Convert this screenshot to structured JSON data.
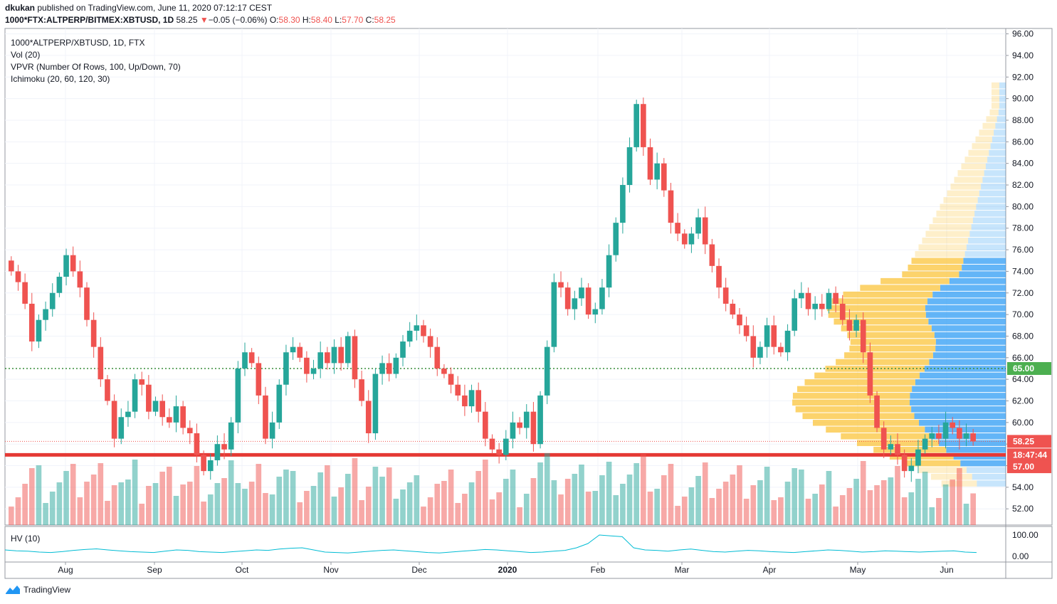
{
  "header": {
    "author": "dkukan",
    "published_text": " published on TradingView.com, June 11, 2020 07:12:17 CEST",
    "symbol": "1000*FTX:ALTPERP/BITMEX:XBTUSD, 1D",
    "last": "58.25",
    "change_arrow": "▼",
    "change": "−0.05 (−0.06%)",
    "open_label": "O:",
    "open": "58.30",
    "high_label": "H:",
    "high": "58.40",
    "low_label": "L:",
    "low": "57.70",
    "close_label": "C:",
    "close": "58.25"
  },
  "legend": {
    "title": "1000*ALTPERP/XBTUSD, 1D, FTX",
    "vol": "Vol (20)",
    "vpvr": "VPVR (Number Of Rows, 100, Up/Down, 70)",
    "ichimoku": "Ichimoku (20, 60, 120, 30)",
    "hv": "HV (10)"
  },
  "footer": {
    "brand": "TradingView",
    "logo_icon": "tradingview-logo-icon"
  },
  "colors": {
    "up": "#26a69a",
    "down": "#ef5350",
    "green_label": "#4caf50",
    "red_label": "#ef5350",
    "vpvr_up": "#2196f3",
    "vpvr_down": "#fbc02d",
    "hv_line": "#00bcd4"
  },
  "chart_data": {
    "type": "candlestick",
    "y_ticks": [
      "96.00",
      "94.00",
      "92.00",
      "90.00",
      "88.00",
      "86.00",
      "84.00",
      "82.00",
      "80.00",
      "78.00",
      "76.00",
      "74.00",
      "72.00",
      "70.00",
      "68.00",
      "66.00",
      "64.00",
      "62.00",
      "60.00",
      "58.00",
      "56.00",
      "54.00",
      "52.00"
    ],
    "ylim": [
      50.5,
      96.5
    ],
    "x_ticks": [
      "Aug",
      "Sep",
      "Oct",
      "Nov",
      "Dec",
      "2020",
      "Feb",
      "Mar",
      "Apr",
      "May",
      "Jun"
    ],
    "hv_ticks": [
      "100.00",
      "0.00"
    ],
    "price_labels": {
      "green": "65.00",
      "last": "58.25",
      "countdown": "18:47:44",
      "red": "57.00"
    },
    "horizontal_lines": [
      57.0,
      65.0
    ],
    "closes": [
      74.0,
      73.0,
      71.0,
      67.5,
      69.5,
      70.5,
      72.0,
      73.5,
      75.5,
      74.0,
      72.5,
      69.5,
      67.0,
      64.0,
      62.0,
      58.5,
      60.5,
      61.0,
      64.0,
      63.5,
      61.0,
      62.0,
      60.5,
      60.0,
      61.5,
      59.5,
      59.0,
      57.0,
      55.5,
      56.5,
      58.0,
      57.5,
      60.0,
      65.0,
      66.5,
      65.5,
      62.5,
      58.5,
      60.0,
      63.5,
      66.5,
      67.0,
      66.0,
      64.5,
      65.0,
      66.5,
      65.5,
      67.0,
      65.5,
      68.0,
      64.0,
      62.0,
      59.0,
      64.5,
      65.5,
      64.5,
      66.0,
      67.5,
      68.5,
      69.0,
      68.0,
      67.0,
      65.0,
      64.5,
      63.5,
      62.5,
      61.5,
      63.0,
      61.0,
      58.5,
      57.5,
      57.0,
      58.5,
      60.0,
      59.5,
      61.0,
      58.0,
      62.5,
      67.0,
      73.0,
      72.5,
      70.5,
      71.5,
      72.5,
      70.0,
      70.5,
      72.5,
      75.5,
      78.5,
      82.0,
      85.5,
      89.5,
      85.5,
      82.5,
      84.0,
      81.5,
      78.5,
      77.5,
      76.5,
      77.5,
      79.0,
      76.5,
      74.5,
      72.5,
      71.0,
      70.0,
      69.0,
      68.0,
      66.0,
      67.0,
      69.0,
      67.0,
      66.5,
      68.5,
      71.5,
      72.0,
      70.5,
      71.0,
      70.5,
      72.0,
      71.0,
      69.5,
      68.5,
      69.5,
      66.5,
      62.5,
      59.5,
      57.5,
      58.0,
      57.0,
      55.5,
      56.0,
      57.5,
      58.5,
      59.0,
      58.5,
      60.0,
      59.5,
      58.5,
      59.0,
      58.25
    ],
    "hv_series": [
      30,
      26,
      24,
      20,
      18,
      22,
      28,
      32,
      35,
      30,
      26,
      22,
      20,
      18,
      24,
      30,
      28,
      22,
      20,
      18,
      22,
      26,
      30,
      28,
      34,
      38,
      40,
      30,
      20,
      18,
      16,
      20,
      24,
      28,
      30,
      26,
      22,
      18,
      16,
      20,
      24,
      28,
      32,
      30,
      26,
      22,
      18,
      20,
      24,
      28,
      40,
      60,
      100,
      96,
      92,
      40,
      30,
      28,
      24,
      30,
      34,
      28,
      22,
      20,
      24,
      28,
      26,
      22,
      20,
      18,
      22,
      26,
      30,
      28,
      24,
      20,
      22,
      26,
      24,
      22,
      20,
      22,
      24,
      26,
      20,
      18
    ],
    "vpvr": {
      "price_min": 54.0,
      "price_max": 91.5,
      "rows": 60
    }
  }
}
